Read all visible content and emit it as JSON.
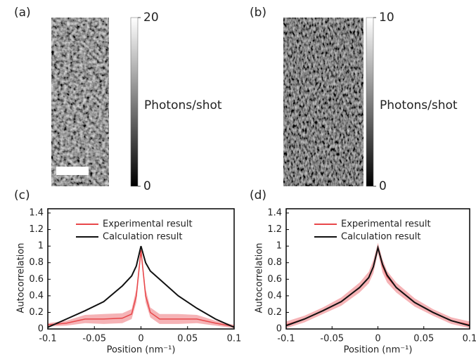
{
  "chart_data": [
    {
      "type": "image",
      "label": "(a)",
      "clim": [
        0,
        20
      ],
      "cticks": [
        0,
        20
      ],
      "colorbar_label": "Photons/shot",
      "scale_bar": true
    },
    {
      "type": "image",
      "label": "(b)",
      "clim": [
        0,
        10
      ],
      "cticks": [
        0,
        10
      ],
      "colorbar_label": "Photons/shot",
      "scale_bar": false
    },
    {
      "type": "line",
      "label": "(c)",
      "xlabel": "Position (nm⁻¹)",
      "ylabel": "Autocorrelation",
      "x": [
        -0.1,
        -0.08,
        -0.06,
        -0.04,
        -0.02,
        -0.01,
        -0.005,
        0,
        0.005,
        0.01,
        0.02,
        0.04,
        0.06,
        0.08,
        0.1
      ],
      "xlim": [
        -0.1,
        0.1
      ],
      "xticks": [
        -0.1,
        -0.05,
        0,
        0.05,
        0.1
      ],
      "ylim": [
        0,
        1.4
      ],
      "yticks": [
        0,
        0.2,
        0.4,
        0.6,
        0.8,
        1,
        1.2,
        1.4
      ],
      "series": [
        {
          "name": "Experimental result",
          "color": "#e8474a",
          "band_color": "#f2a0a4",
          "values": [
            0.05,
            0.07,
            0.12,
            0.12,
            0.13,
            0.18,
            0.4,
            0.95,
            0.4,
            0.2,
            0.12,
            0.12,
            0.12,
            0.07,
            0.03
          ],
          "error": [
            0.02,
            0.03,
            0.05,
            0.06,
            0.06,
            0.06,
            0.08,
            0.05,
            0.08,
            0.06,
            0.06,
            0.06,
            0.05,
            0.03,
            0.02
          ]
        },
        {
          "name": "Calculation result",
          "color": "#111111",
          "values": [
            0.02,
            0.12,
            0.22,
            0.33,
            0.52,
            0.64,
            0.76,
            1.0,
            0.8,
            0.7,
            0.6,
            0.4,
            0.25,
            0.12,
            0.02
          ]
        }
      ]
    },
    {
      "type": "line",
      "label": "(d)",
      "xlabel": "Position (nm⁻¹)",
      "ylabel": "Autocorrelation",
      "x": [
        -0.1,
        -0.08,
        -0.06,
        -0.04,
        -0.02,
        -0.01,
        -0.005,
        0,
        0.005,
        0.01,
        0.02,
        0.04,
        0.06,
        0.08,
        0.1
      ],
      "xlim": [
        -0.1,
        0.1
      ],
      "xticks": [
        -0.1,
        -0.05,
        0,
        0.05,
        0.1
      ],
      "ylim": [
        0,
        1.4
      ],
      "yticks": [
        0,
        0.2,
        0.4,
        0.6,
        0.8,
        1,
        1.2,
        1.4
      ],
      "series": [
        {
          "name": "Experimental result",
          "color": "#e8474a",
          "band_color": "#f2a0a4",
          "values": [
            0.05,
            0.12,
            0.22,
            0.33,
            0.5,
            0.62,
            0.75,
            0.98,
            0.76,
            0.63,
            0.5,
            0.32,
            0.2,
            0.1,
            0.05
          ],
          "error": [
            0.04,
            0.04,
            0.04,
            0.05,
            0.06,
            0.07,
            0.08,
            0.06,
            0.08,
            0.07,
            0.06,
            0.05,
            0.04,
            0.04,
            0.04
          ]
        },
        {
          "name": "Calculation result",
          "color": "#111111",
          "values": [
            0.04,
            0.12,
            0.22,
            0.33,
            0.5,
            0.62,
            0.75,
            0.98,
            0.78,
            0.65,
            0.5,
            0.32,
            0.2,
            0.1,
            0.04
          ]
        }
      ]
    }
  ]
}
